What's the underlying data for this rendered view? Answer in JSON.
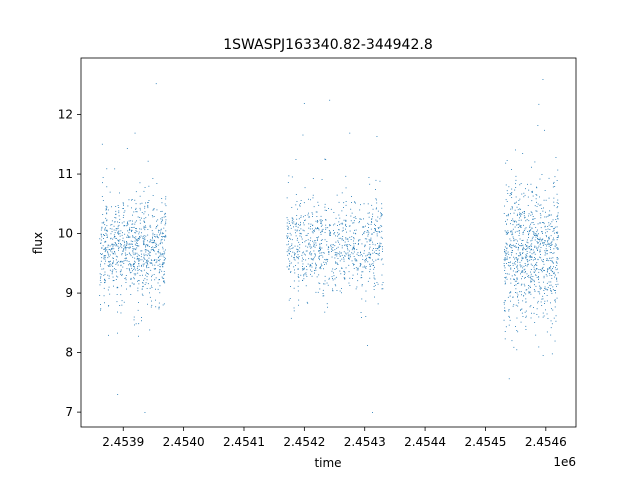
{
  "chart_data": {
    "type": "scatter",
    "title": "1SWASPJ163340.82-344942.8",
    "xlabel": "time",
    "ylabel": "flux",
    "x_offset_label": "1e6",
    "xlim": [
      2.45383,
      2.45465
    ],
    "ylim": [
      6.75,
      12.95
    ],
    "x_ticks": [
      2.4539,
      2.454,
      2.4541,
      2.4542,
      2.4543,
      2.4544,
      2.4545,
      2.4546
    ],
    "x_tick_labels": [
      "2.4539",
      "2.4540",
      "2.4541",
      "2.4542",
      "2.4543",
      "2.4544",
      "2.4545",
      "2.4546"
    ],
    "y_ticks": [
      7,
      8,
      9,
      10,
      11,
      12
    ],
    "y_tick_labels": [
      "7",
      "8",
      "9",
      "10",
      "11",
      "12"
    ],
    "grid": false,
    "legend": "none",
    "marker_color": "#1f77b4",
    "series": [
      {
        "segments": [
          {
            "t_start": 2.45386,
            "t_end": 2.45397,
            "center": 9.75,
            "spread": 0.35,
            "n": 900
          },
          {
            "t_start": 2.45417,
            "t_end": 2.45433,
            "center": 9.8,
            "spread": 0.35,
            "n": 900
          },
          {
            "t_start": 2.45453,
            "t_end": 2.45462,
            "center": 9.7,
            "spread": 0.55,
            "n": 900
          }
        ],
        "flux_min": 7.0,
        "flux_max": 12.65
      }
    ]
  }
}
